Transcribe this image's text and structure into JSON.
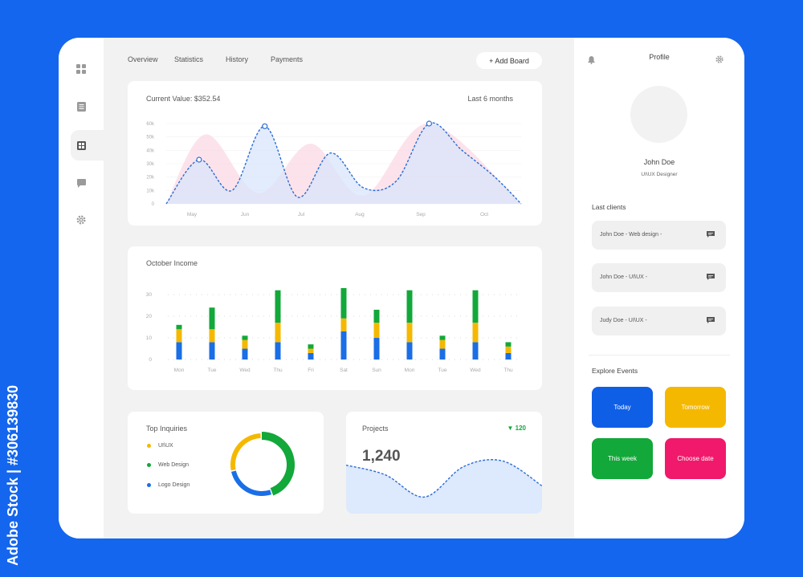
{
  "nav": {
    "tabs": [
      "Overview",
      "Statistics",
      "History",
      "Payments"
    ],
    "add_board": "+ Add Board"
  },
  "sidebar": {
    "icons": [
      "dashboard-icon",
      "document-icon",
      "grid-icon",
      "chat-icon",
      "settings-icon"
    ],
    "active_index": 2
  },
  "value_card": {
    "title": "Current Value: $352.54",
    "period": "Last 6 months"
  },
  "income_card": {
    "title": "October Income"
  },
  "inquiries_card": {
    "title": "Top Inquiries",
    "items": [
      {
        "label": "UI\\UX",
        "color": "#f5b800"
      },
      {
        "label": "Web Design",
        "color": "#12a83a"
      },
      {
        "label": "Logo Design",
        "color": "#1a6ee6"
      }
    ]
  },
  "projects_card": {
    "title": "Projects",
    "value": "1,240",
    "change": "120",
    "change_color": "#12a83a"
  },
  "profile": {
    "header": "Profile",
    "name": "John Doe",
    "role": "UI\\UX Designer",
    "last_clients_title": "Last clients",
    "clients": [
      {
        "label": "John Doe - Web design -"
      },
      {
        "label": "John Doe - UI\\UX -"
      },
      {
        "label": "Judy Doe - UI\\UX -"
      }
    ],
    "events_title": "Explore Events",
    "events": [
      {
        "label": "Today",
        "color": "#0f5ee6"
      },
      {
        "label": "Tomorrow",
        "color": "#f5b800"
      },
      {
        "label": "This week",
        "color": "#12a83a"
      },
      {
        "label": "Choose date",
        "color": "#f0196b"
      }
    ]
  },
  "watermark": "Adobe Stock | #306139830",
  "colors": {
    "background": "#1466ee",
    "blue": "#1a6ee6",
    "yellow": "#f5b800",
    "green": "#12a83a"
  },
  "chart_data": [
    {
      "type": "line",
      "title": "Current Value: $352.54",
      "x_ticks": [
        "May",
        "Jun",
        "Jul",
        "Aug",
        "Sep",
        "Oct"
      ],
      "y_ticks": [
        "0",
        "10k",
        "20k",
        "30k",
        "40k",
        "50k",
        "60k"
      ],
      "ylim": [
        0,
        60000
      ],
      "grid": true,
      "series": [
        {
          "type": "line",
          "x": [
            0,
            0.5,
            1,
            1.5,
            2,
            2.5,
            3,
            3.5,
            4,
            4.5,
            5,
            5.4
          ],
          "values": [
            0,
            33000,
            10000,
            58000,
            5000,
            38000,
            12000,
            17000,
            60000,
            40000,
            20000,
            0
          ]
        },
        {
          "type": "area",
          "x": [
            0,
            0.6,
            1.4,
            2.2,
            3,
            4,
            5.4
          ],
          "values": [
            0,
            52000,
            8000,
            45000,
            6000,
            60000,
            0
          ]
        }
      ]
    },
    {
      "type": "bar",
      "title": "October Income",
      "categories": [
        "Mon",
        "Tue",
        "Wed",
        "Thu",
        "Fri",
        "Sat",
        "Sun",
        "Mon",
        "Tue",
        "Wed",
        "Thu"
      ],
      "y_ticks": [
        "0",
        "10",
        "20",
        "30"
      ],
      "ylim": [
        0,
        33
      ],
      "series": [
        {
          "color": "#1a6ee6",
          "values": [
            8,
            8,
            5,
            8,
            3,
            13,
            10,
            8,
            5,
            8,
            3
          ]
        },
        {
          "color": "#f5b800",
          "values": [
            6,
            6,
            4,
            9,
            2,
            6,
            7,
            9,
            4,
            9,
            3
          ]
        },
        {
          "color": "#12a83a",
          "values": [
            2,
            10,
            2,
            15,
            2,
            14,
            6,
            15,
            2,
            15,
            2
          ]
        }
      ]
    },
    {
      "type": "pie",
      "title": "Top Inquiries",
      "labels": [
        "Web Design",
        "Logo Design",
        "UI\\UX"
      ],
      "values": [
        45,
        27,
        28
      ]
    },
    {
      "type": "area",
      "title": "Projects",
      "x": [
        0,
        1,
        2,
        3,
        4,
        5
      ],
      "values": [
        35,
        28,
        12,
        34,
        38,
        20
      ]
    }
  ]
}
